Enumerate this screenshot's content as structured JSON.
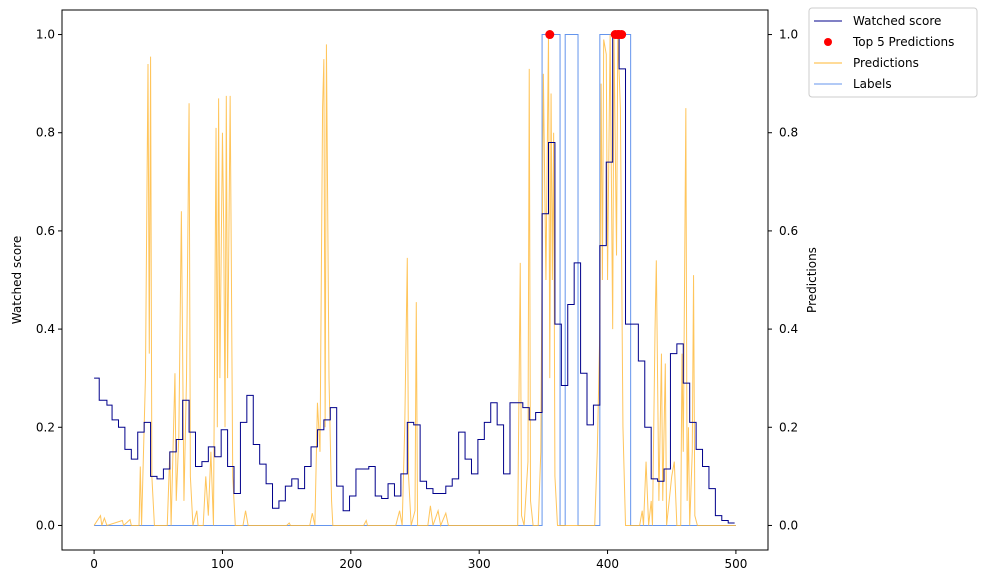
{
  "chart_data": {
    "type": "line",
    "xlim": [
      -25,
      525
    ],
    "ylim_left": [
      -0.05,
      1.05
    ],
    "ylim_right": [
      -0.05,
      1.05
    ],
    "x_ticks": [
      0,
      100,
      200,
      300,
      400,
      500
    ],
    "x_tick_labels": [
      "0",
      "100",
      "200",
      "300",
      "400",
      "500"
    ],
    "y_ticks": [
      0.0,
      0.2,
      0.4,
      0.6,
      0.8,
      1.0
    ],
    "y_tick_labels": [
      "0.0",
      "0.2",
      "0.4",
      "0.6",
      "0.8",
      "1.0"
    ],
    "ylabel_left": "Watched score",
    "ylabel_right": "Predictions",
    "legend_position": "outside-top-right",
    "grid": false,
    "series": [
      {
        "name": "Watched score",
        "kind": "step",
        "color": "#00008b",
        "points": [
          [
            0,
            0.3
          ],
          [
            4,
            0.255
          ],
          [
            10,
            0.245
          ],
          [
            14,
            0.215
          ],
          [
            19,
            0.2
          ],
          [
            24,
            0.155
          ],
          [
            29,
            0.135
          ],
          [
            34,
            0.19
          ],
          [
            39,
            0.21
          ],
          [
            44,
            0.1
          ],
          [
            49,
            0.095
          ],
          [
            54,
            0.115
          ],
          [
            59,
            0.15
          ],
          [
            64,
            0.175
          ],
          [
            69,
            0.255
          ],
          [
            74,
            0.19
          ],
          [
            79,
            0.12
          ],
          [
            84,
            0.13
          ],
          [
            89,
            0.16
          ],
          [
            94,
            0.14
          ],
          [
            99,
            0.195
          ],
          [
            104,
            0.12
          ],
          [
            109,
            0.065
          ],
          [
            114,
            0.21
          ],
          [
            119,
            0.265
          ],
          [
            124,
            0.165
          ],
          [
            129,
            0.125
          ],
          [
            134,
            0.085
          ],
          [
            139,
            0.035
          ],
          [
            144,
            0.05
          ],
          [
            149,
            0.08
          ],
          [
            154,
            0.095
          ],
          [
            159,
            0.075
          ],
          [
            164,
            0.12
          ],
          [
            169,
            0.16
          ],
          [
            174,
            0.195
          ],
          [
            179,
            0.215
          ],
          [
            184,
            0.24
          ],
          [
            189,
            0.08
          ],
          [
            194,
            0.03
          ],
          [
            199,
            0.06
          ],
          [
            204,
            0.115
          ],
          [
            214,
            0.12
          ],
          [
            219,
            0.06
          ],
          [
            224,
            0.055
          ],
          [
            229,
            0.085
          ],
          [
            234,
            0.06
          ],
          [
            239,
            0.105
          ],
          [
            244,
            0.21
          ],
          [
            249,
            0.205
          ],
          [
            254,
            0.09
          ],
          [
            259,
            0.075
          ],
          [
            264,
            0.065
          ],
          [
            274,
            0.08
          ],
          [
            279,
            0.095
          ],
          [
            284,
            0.19
          ],
          [
            289,
            0.135
          ],
          [
            294,
            0.105
          ],
          [
            299,
            0.175
          ],
          [
            304,
            0.21
          ],
          [
            309,
            0.25
          ],
          [
            314,
            0.205
          ],
          [
            319,
            0.105
          ],
          [
            324,
            0.25
          ],
          [
            334,
            0.24
          ],
          [
            339,
            0.215
          ],
          [
            344,
            0.23
          ],
          [
            349,
            0.635
          ],
          [
            354,
            0.78
          ],
          [
            359,
            0.41
          ],
          [
            364,
            0.285
          ],
          [
            369,
            0.45
          ],
          [
            374,
            0.535
          ],
          [
            379,
            0.31
          ],
          [
            384,
            0.205
          ],
          [
            389,
            0.245
          ],
          [
            394,
            0.57
          ],
          [
            399,
            0.74
          ],
          [
            404,
            0.995
          ],
          [
            409,
            0.93
          ],
          [
            414,
            0.41
          ],
          [
            419,
            0.41
          ],
          [
            424,
            0.335
          ],
          [
            429,
            0.2
          ],
          [
            434,
            0.095
          ],
          [
            439,
            0.09
          ],
          [
            444,
            0.115
          ],
          [
            449,
            0.35
          ],
          [
            454,
            0.37
          ],
          [
            459,
            0.29
          ],
          [
            464,
            0.21
          ],
          [
            469,
            0.155
          ],
          [
            474,
            0.12
          ],
          [
            479,
            0.075
          ],
          [
            484,
            0.02
          ],
          [
            489,
            0.01
          ],
          [
            494,
            0.005
          ],
          [
            499,
            0.005
          ]
        ]
      },
      {
        "name": "Top 5 Predictions",
        "kind": "scatter",
        "color": "#ff0000",
        "points": [
          [
            355,
            1.0
          ],
          [
            406,
            1.0
          ],
          [
            408,
            1.0
          ],
          [
            409,
            1.0
          ],
          [
            411,
            1.0
          ]
        ]
      },
      {
        "name": "Predictions",
        "kind": "line",
        "color": "#ffb732",
        "points": [
          [
            0,
            0.0
          ],
          [
            5,
            0.02
          ],
          [
            6,
            0.0
          ],
          [
            8,
            0.015
          ],
          [
            10,
            0.0
          ],
          [
            22,
            0.01
          ],
          [
            23,
            0.0
          ],
          [
            28,
            0.012
          ],
          [
            29,
            0.0
          ],
          [
            35,
            0.0
          ],
          [
            36,
            0.12
          ],
          [
            37,
            0.0
          ],
          [
            40,
            0.3
          ],
          [
            42,
            0.94
          ],
          [
            43,
            0.35
          ],
          [
            44,
            0.955
          ],
          [
            45,
            0.1
          ],
          [
            47,
            0.0
          ],
          [
            57,
            0.0
          ],
          [
            59,
            0.15
          ],
          [
            60,
            0.0
          ],
          [
            63,
            0.31
          ],
          [
            64,
            0.05
          ],
          [
            66,
            0.18
          ],
          [
            68,
            0.64
          ],
          [
            70,
            0.05
          ],
          [
            72,
            0.3
          ],
          [
            74,
            0.86
          ],
          [
            75,
            0.1
          ],
          [
            77,
            0.0
          ],
          [
            80,
            0.03
          ],
          [
            81,
            0.0
          ],
          [
            85,
            0.0
          ],
          [
            87,
            0.1
          ],
          [
            89,
            0.02
          ],
          [
            91,
            0.15
          ],
          [
            93,
            0.0
          ],
          [
            95,
            0.81
          ],
          [
            96,
            0.2
          ],
          [
            97,
            0.87
          ],
          [
            98,
            0.3
          ],
          [
            100,
            0.8
          ],
          [
            101,
            0.6
          ],
          [
            102,
            0.2
          ],
          [
            103,
            0.875
          ],
          [
            104,
            0.3
          ],
          [
            106,
            0.875
          ],
          [
            107,
            0.5
          ],
          [
            108,
            0.1
          ],
          [
            110,
            0.0
          ],
          [
            116,
            0.0
          ],
          [
            118,
            0.03
          ],
          [
            120,
            0.0
          ],
          [
            150,
            0.0
          ],
          [
            152,
            0.005
          ],
          [
            153,
            0.0
          ],
          [
            168,
            0.0
          ],
          [
            170,
            0.025
          ],
          [
            172,
            0.0
          ],
          [
            174,
            0.25
          ],
          [
            176,
            0.15
          ],
          [
            178,
            0.85
          ],
          [
            179,
            0.95
          ],
          [
            180,
            0.2
          ],
          [
            181,
            0.98
          ],
          [
            183,
            0.3
          ],
          [
            185,
            0.05
          ],
          [
            186,
            0.0
          ],
          [
            210,
            0.0
          ],
          [
            212,
            0.01
          ],
          [
            213,
            0.0
          ],
          [
            235,
            0.0
          ],
          [
            238,
            0.03
          ],
          [
            240,
            0.0
          ],
          [
            242,
            0.2
          ],
          [
            244,
            0.545
          ],
          [
            245,
            0.1
          ],
          [
            247,
            0.0
          ],
          [
            250,
            0.03
          ],
          [
            251,
            0.455
          ],
          [
            252,
            0.0
          ],
          [
            260,
            0.0
          ],
          [
            262,
            0.04
          ],
          [
            264,
            0.0
          ],
          [
            268,
            0.03
          ],
          [
            270,
            0.0
          ],
          [
            274,
            0.025
          ],
          [
            276,
            0.0
          ],
          [
            330,
            0.0
          ],
          [
            332,
            0.535
          ],
          [
            333,
            0.02
          ],
          [
            335,
            0.0
          ],
          [
            338,
            0.13
          ],
          [
            339,
            0.93
          ],
          [
            340,
            0.05
          ],
          [
            342,
            0.0
          ],
          [
            346,
            0.0
          ],
          [
            348,
            0.15
          ],
          [
            350,
            0.92
          ],
          [
            352,
            0.5
          ],
          [
            354,
            1.0
          ],
          [
            355,
            0.3
          ],
          [
            356,
            0.88
          ],
          [
            357,
            0.5
          ],
          [
            358,
            0.8
          ],
          [
            359,
            0.1
          ],
          [
            361,
            0.0
          ],
          [
            390,
            0.0
          ],
          [
            392,
            0.15
          ],
          [
            394,
            0.4
          ],
          [
            395,
            0.9
          ],
          [
            396,
            0.5
          ],
          [
            397,
            0.99
          ],
          [
            399,
            0.96
          ],
          [
            400,
            0.5
          ],
          [
            402,
            1.0
          ],
          [
            404,
            0.4
          ],
          [
            405,
            1.0
          ],
          [
            407,
            0.55
          ],
          [
            408,
            1.0
          ],
          [
            410,
            0.85
          ],
          [
            412,
            0.2
          ],
          [
            414,
            0.0
          ],
          [
            425,
            0.0
          ],
          [
            427,
            0.03
          ],
          [
            428,
            0.0
          ],
          [
            430,
            0.13
          ],
          [
            432,
            0.0
          ],
          [
            434,
            0.05
          ],
          [
            435,
            0.0
          ],
          [
            437,
            0.4
          ],
          [
            438,
            0.54
          ],
          [
            440,
            0.05
          ],
          [
            442,
            0.35
          ],
          [
            443,
            0.05
          ],
          [
            445,
            0.33
          ],
          [
            446,
            0.0
          ],
          [
            448,
            0.05
          ],
          [
            450,
            0.1
          ],
          [
            452,
            0.13
          ],
          [
            454,
            0.0
          ],
          [
            457,
            0.0
          ],
          [
            458,
            0.35
          ],
          [
            459,
            0.15
          ],
          [
            461,
            0.85
          ],
          [
            462,
            0.05
          ],
          [
            463,
            0.2
          ],
          [
            464,
            0.0
          ],
          [
            466,
            0.15
          ],
          [
            467,
            0.51
          ],
          [
            468,
            0.02
          ],
          [
            470,
            0.0
          ],
          [
            500,
            0.0
          ]
        ]
      },
      {
        "name": "Labels",
        "kind": "step",
        "color": "#6495ed",
        "points": [
          [
            0,
            0.0
          ],
          [
            349,
            0.0
          ],
          [
            349,
            1.0
          ],
          [
            363,
            1.0
          ],
          [
            363,
            0.0
          ],
          [
            367,
            0.0
          ],
          [
            367,
            1.0
          ],
          [
            377,
            1.0
          ],
          [
            377,
            0.0
          ],
          [
            394,
            0.0
          ],
          [
            394,
            1.0
          ],
          [
            400,
            1.0
          ],
          [
            400,
            1.0
          ],
          [
            418,
            1.0
          ],
          [
            418,
            0.0
          ],
          [
            500,
            0.0
          ]
        ]
      }
    ]
  }
}
